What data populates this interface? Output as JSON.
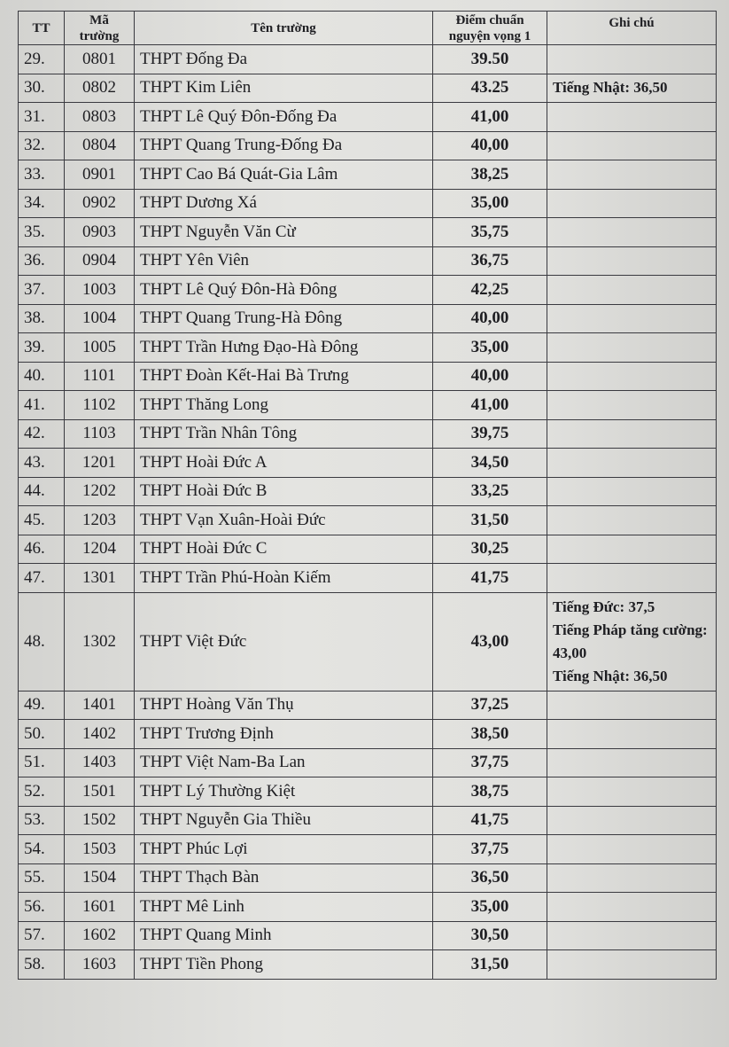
{
  "table": {
    "headers": [
      "TT",
      "Mã trường",
      "Tên trường",
      "Điểm chuẩn nguyện vọng 1",
      "Ghi chú"
    ],
    "rows": [
      {
        "tt": "29.",
        "code": "0801",
        "name": "THPT Đống Đa",
        "score": "39.50",
        "note": []
      },
      {
        "tt": "30.",
        "code": "0802",
        "name": "THPT Kim Liên",
        "score": "43.25",
        "note": [
          "Tiếng Nhật: 36,50"
        ]
      },
      {
        "tt": "31.",
        "code": "0803",
        "name": "THPT Lê Quý Đôn-Đống Đa",
        "score": "41,00",
        "note": []
      },
      {
        "tt": "32.",
        "code": "0804",
        "name": "THPT Quang Trung-Đống Đa",
        "score": "40,00",
        "note": []
      },
      {
        "tt": "33.",
        "code": "0901",
        "name": "THPT Cao Bá Quát-Gia Lâm",
        "score": "38,25",
        "note": []
      },
      {
        "tt": "34.",
        "code": "0902",
        "name": "THPT Dương Xá",
        "score": "35,00",
        "note": []
      },
      {
        "tt": "35.",
        "code": "0903",
        "name": "THPT Nguyễn Văn Cừ",
        "score": "35,75",
        "note": []
      },
      {
        "tt": "36.",
        "code": "0904",
        "name": "THPT Yên Viên",
        "score": "36,75",
        "note": []
      },
      {
        "tt": "37.",
        "code": "1003",
        "name": "THPT Lê Quý Đôn-Hà Đông",
        "score": "42,25",
        "note": []
      },
      {
        "tt": "38.",
        "code": "1004",
        "name": "THPT Quang Trung-Hà Đông",
        "score": "40,00",
        "note": []
      },
      {
        "tt": "39.",
        "code": "1005",
        "name": "THPT Trần Hưng Đạo-Hà Đông",
        "score": "35,00",
        "note": []
      },
      {
        "tt": "40.",
        "code": "1101",
        "name": "THPT Đoàn Kết-Hai Bà Trưng",
        "score": "40,00",
        "note": []
      },
      {
        "tt": "41.",
        "code": "1102",
        "name": "THPT Thăng Long",
        "score": "41,00",
        "note": []
      },
      {
        "tt": "42.",
        "code": "1103",
        "name": "THPT Trần Nhân Tông",
        "score": "39,75",
        "note": []
      },
      {
        "tt": "43.",
        "code": "1201",
        "name": "THPT Hoài Đức A",
        "score": "34,50",
        "note": []
      },
      {
        "tt": "44.",
        "code": "1202",
        "name": "THPT Hoài Đức B",
        "score": "33,25",
        "note": []
      },
      {
        "tt": "45.",
        "code": "1203",
        "name": "THPT Vạn Xuân-Hoài Đức",
        "score": "31,50",
        "note": []
      },
      {
        "tt": "46.",
        "code": "1204",
        "name": "THPT Hoài Đức C",
        "score": "30,25",
        "note": []
      },
      {
        "tt": "47.",
        "code": "1301",
        "name": "THPT Trần Phú-Hoàn Kiếm",
        "score": "41,75",
        "note": []
      },
      {
        "tt": "48.",
        "code": "1302",
        "name": "THPT Việt Đức",
        "score": "43,00",
        "note": [
          "Tiếng Đức: 37,5",
          "Tiếng Pháp tăng cường: 43,00",
          "Tiếng Nhật: 36,50"
        ]
      },
      {
        "tt": "49.",
        "code": "1401",
        "name": "THPT Hoàng Văn Thụ",
        "score": "37,25",
        "note": []
      },
      {
        "tt": "50.",
        "code": "1402",
        "name": "THPT Trương Định",
        "score": "38,50",
        "note": []
      },
      {
        "tt": "51.",
        "code": "1403",
        "name": "THPT Việt Nam-Ba Lan",
        "score": "37,75",
        "note": []
      },
      {
        "tt": "52.",
        "code": "1501",
        "name": "THPT Lý Thường Kiệt",
        "score": "38,75",
        "note": []
      },
      {
        "tt": "53.",
        "code": "1502",
        "name": "THPT Nguyễn Gia Thiều",
        "score": "41,75",
        "note": []
      },
      {
        "tt": "54.",
        "code": "1503",
        "name": "THPT Phúc Lợi",
        "score": "37,75",
        "note": []
      },
      {
        "tt": "55.",
        "code": "1504",
        "name": "THPT Thạch Bàn",
        "score": "36,50",
        "note": []
      },
      {
        "tt": "56.",
        "code": "1601",
        "name": "THPT Mê Linh",
        "score": "35,00",
        "note": []
      },
      {
        "tt": "57.",
        "code": "1602",
        "name": "THPT Quang Minh",
        "score": "30,50",
        "note": []
      },
      {
        "tt": "58.",
        "code": "1603",
        "name": "THPT Tiền Phong",
        "score": "31,50",
        "note": []
      }
    ]
  }
}
